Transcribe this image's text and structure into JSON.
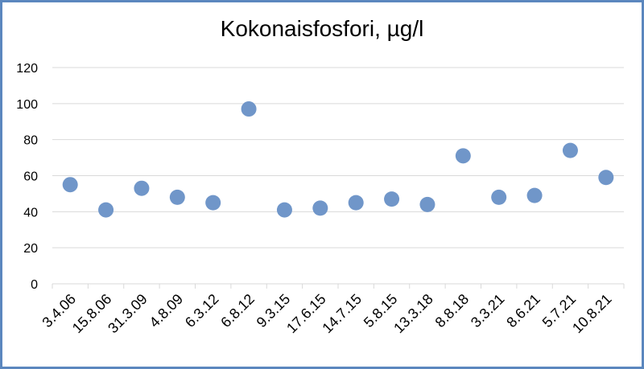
{
  "chart_data": {
    "type": "scatter",
    "title": "Kokonaisfosfori, µg/l",
    "xlabel": "",
    "ylabel": "",
    "categories": [
      "3.4.06",
      "15.8.06",
      "31.3.09",
      "4.8.09",
      "6.3.12",
      "6.8.12",
      "9.3.15",
      "17.6.15",
      "14.7.15",
      "5.8.15",
      "13.3.18",
      "8.8.18",
      "3.3.21",
      "8.6.21",
      "5.7.21",
      "10.8.21"
    ],
    "values": [
      55,
      41,
      53,
      48,
      45,
      97,
      41,
      42,
      45,
      47,
      44,
      71,
      48,
      49,
      74,
      59
    ],
    "ylim": [
      0,
      120
    ],
    "yticks": [
      0,
      20,
      40,
      60,
      80,
      100,
      120
    ],
    "grid": true,
    "legend": "none",
    "marker_color": "#7096c9",
    "grid_color": "#d9d9d9",
    "border_color": "#5b87be"
  }
}
